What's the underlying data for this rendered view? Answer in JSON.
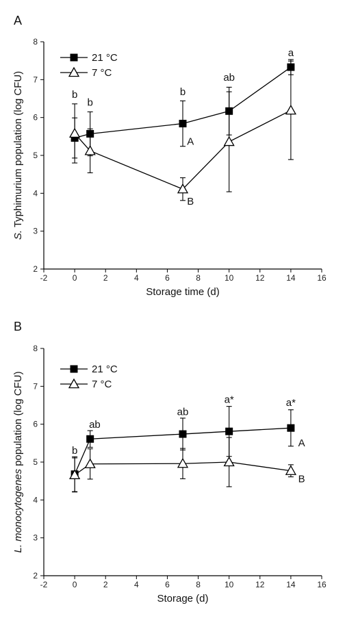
{
  "chart_data": [
    {
      "type": "line",
      "panel": "A",
      "xlabel": "Storage time (d)",
      "ylabel_italic": "S.",
      "ylabel_rest": " Typhimurium population (log CFU)",
      "xlim": [
        -2,
        16
      ],
      "ylim": [
        2,
        8
      ],
      "xticks": [
        "-2",
        "0",
        "2",
        "4",
        "6",
        "8",
        "10",
        "12",
        "14",
        "16"
      ],
      "yticks": [
        "2",
        "3",
        "4",
        "5",
        "6",
        "7",
        "8"
      ],
      "legend_position": "top-left",
      "series": [
        {
          "name": "21 °C",
          "marker": "filled-square",
          "x": [
            0,
            1,
            7,
            10,
            14
          ],
          "y": [
            5.46,
            5.57,
            5.84,
            6.17,
            7.33
          ],
          "err": [
            0.53,
            0.58,
            0.6,
            0.63,
            0.2
          ]
        },
        {
          "name": "7 °C",
          "marker": "open-triangle",
          "x": [
            0,
            1,
            7,
            10,
            14
          ],
          "y": [
            5.58,
            5.12,
            4.11,
            5.36,
            6.19
          ],
          "err": [
            0.78,
            0.58,
            0.3,
            1.32,
            1.3
          ]
        }
      ],
      "annotations": [
        {
          "text": "b",
          "x": 0,
          "y": 6.52
        },
        {
          "text": "b",
          "x": 1,
          "y": 6.31
        },
        {
          "text": "b",
          "x": 7,
          "y": 6.59
        },
        {
          "text": "ab",
          "x": 10,
          "y": 6.97
        },
        {
          "text": "a",
          "x": 14,
          "y": 7.62
        },
        {
          "text": "A",
          "x": 7.5,
          "y": 5.28
        },
        {
          "text": "B",
          "x": 7.5,
          "y": 3.7
        }
      ]
    },
    {
      "type": "line",
      "panel": "B",
      "xlabel": "Storage (d)",
      "ylabel_italic": "L. monocytogenes",
      "ylabel_rest": " population (log CFU)",
      "xlim": [
        -2,
        16
      ],
      "ylim": [
        2,
        8
      ],
      "xticks": [
        "-2",
        "0",
        "2",
        "4",
        "6",
        "8",
        "10",
        "12",
        "14",
        "16"
      ],
      "yticks": [
        "2",
        "3",
        "4",
        "5",
        "6",
        "7",
        "8"
      ],
      "legend_position": "top-left",
      "series": [
        {
          "name": "21 °C",
          "marker": "filled-square",
          "x": [
            0,
            1,
            7,
            10,
            14
          ],
          "y": [
            4.68,
            5.61,
            5.74,
            5.81,
            5.9
          ],
          "err": [
            0.46,
            0.22,
            0.42,
            0.66,
            0.48
          ]
        },
        {
          "name": "7 °C",
          "marker": "open-triangle",
          "x": [
            0,
            1,
            7,
            10,
            14
          ],
          "y": [
            4.66,
            4.95,
            4.96,
            5.0,
            4.77
          ],
          "err": [
            0.45,
            0.4,
            0.4,
            0.65,
            0.16
          ]
        }
      ],
      "annotations": [
        {
          "text": "b",
          "x": 0,
          "y": 5.22
        },
        {
          "text": "ab",
          "x": 1.3,
          "y": 5.9
        },
        {
          "text": "ab",
          "x": 7,
          "y": 6.24
        },
        {
          "text": "a*",
          "x": 10,
          "y": 6.56
        },
        {
          "text": "a*",
          "x": 14,
          "y": 6.48
        },
        {
          "text": "A",
          "x": 14.7,
          "y": 5.42
        },
        {
          "text": "B",
          "x": 14.7,
          "y": 4.47
        }
      ]
    }
  ]
}
